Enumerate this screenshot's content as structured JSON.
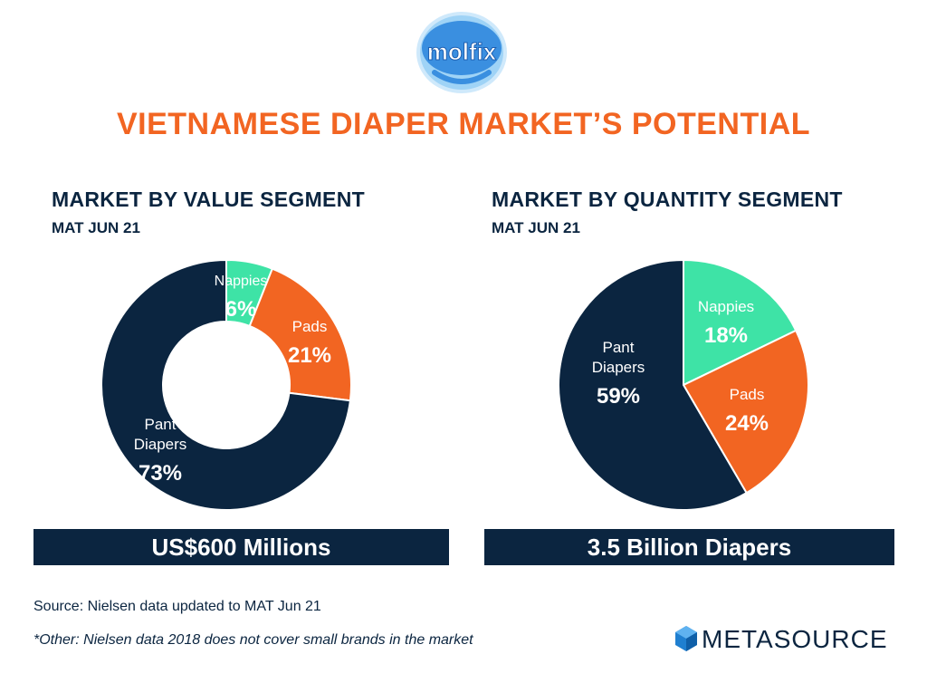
{
  "logo": {
    "text": "molfix"
  },
  "title": "VIETNAMESE DIAPER MARKET’S POTENTIAL",
  "chart_data": [
    {
      "type": "pie",
      "title": "MARKET BY VALUE SEGMENT",
      "subtitle": "MAT JUN 21",
      "donut": true,
      "labels": [
        "Nappies",
        "Pads",
        "Pant Diapers"
      ],
      "values": [
        6,
        21,
        73
      ],
      "value_labels": [
        "6%",
        "21%",
        "73%"
      ],
      "colors": [
        "#3ee3a6",
        "#f26522",
        "#0b2540"
      ],
      "total_label": "US$600 Millions"
    },
    {
      "type": "pie",
      "title": "MARKET BY QUANTITY SEGMENT",
      "subtitle": "MAT JUN 21",
      "donut": false,
      "labels": [
        "Nappies",
        "Pads",
        "Pant Diapers"
      ],
      "values": [
        18,
        24,
        59
      ],
      "value_labels": [
        "18%",
        "24%",
        "59%"
      ],
      "colors": [
        "#3ee3a6",
        "#f26522",
        "#0b2540"
      ],
      "total_label": "3.5 Billion Diapers"
    }
  ],
  "footer": {
    "source": "Source: Nielsen data updated to MAT Jun 21",
    "note": "*Other: Nielsen data 2018 does not cover small brands in the market",
    "brand": "METASOURCE"
  }
}
